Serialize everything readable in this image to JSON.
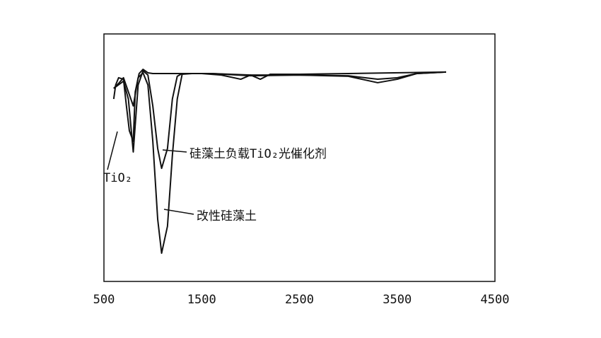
{
  "chart_data": {
    "type": "line",
    "xlim": [
      500,
      4500
    ],
    "xticks": [
      500,
      1500,
      2500,
      3500,
      4500
    ],
    "ylim": [
      0,
      100
    ],
    "series": [
      {
        "name": "改性硅藻土",
        "color": "#111111",
        "x": [
          600,
          650,
          700,
          750,
          800,
          850,
          900,
          950,
          1000,
          1050,
          1090,
          1150,
          1200,
          1250,
          1300,
          1400,
          1600,
          2000,
          2500,
          3000,
          3300,
          3500,
          3700,
          4000
        ],
        "values": [
          78,
          80,
          82.3,
          76.6,
          70.9,
          82.3,
          84.3,
          79.4,
          56.6,
          25.1,
          11.4,
          22.3,
          50.9,
          73.7,
          83.7,
          84,
          84,
          83.4,
          83.4,
          82.9,
          80.3,
          81.7,
          84,
          84.6
        ]
      },
      {
        "name": "硅藻土负载TiO₂光催化剂",
        "color": "#111111",
        "x": [
          600,
          700,
          750,
          800,
          850,
          900,
          950,
          1000,
          1050,
          1090,
          1150,
          1200,
          1250,
          1300,
          1600,
          2000,
          2500,
          3000,
          3300,
          3500,
          3700,
          4000
        ],
        "values": [
          78,
          80.9,
          73.7,
          52.3,
          79.4,
          85.1,
          83.4,
          70.9,
          53.7,
          45.7,
          53.7,
          73.7,
          82.9,
          84,
          84,
          83.1,
          83.4,
          83.1,
          81.7,
          82.3,
          84,
          84.6
        ]
      },
      {
        "name": "TiO₂",
        "color": "#111111",
        "x": [
          600,
          620,
          650,
          700,
          730,
          760,
          800,
          820,
          860,
          900,
          950,
          1000,
          1200,
          1500,
          1700,
          1900,
          2000,
          2100,
          2200,
          2500,
          3000,
          4000
        ],
        "values": [
          73.7,
          79.4,
          82.3,
          81.7,
          70.9,
          60.9,
          56.6,
          76.6,
          84,
          85.7,
          84.3,
          84,
          84,
          84,
          83.4,
          81.7,
          83.4,
          81.7,
          83.7,
          83.7,
          84,
          84.6
        ]
      }
    ]
  }
}
